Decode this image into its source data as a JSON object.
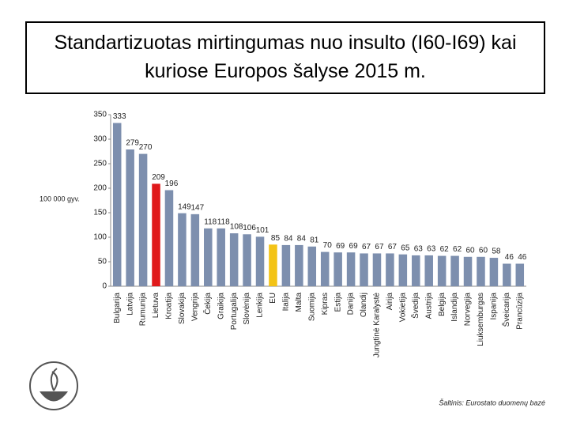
{
  "chart_data": {
    "type": "bar",
    "title": "Standartizuotas mirtingumas nuo insulto (I60-I69) kai kuriose Europos šalyse 2015 m.",
    "y_label": "100 000 gyv.",
    "source": "Šaltinis: Eurostato duomenų bazė",
    "categories": [
      "Bulgarija",
      "Latvija",
      "Rumunija",
      "Lietuva",
      "Kroatija",
      "Slovakija",
      "Vengrija",
      "Čekija",
      "Graikija",
      "Portugalija",
      "Slovėnija",
      "Lenkija",
      "EU",
      "Italija",
      "Malta",
      "Suomija",
      "Kipras",
      "Estija",
      "Danija",
      "Olandij",
      "Jungtinė Karalystė",
      "Airija",
      "Vokietija",
      "Švedija",
      "Austrija",
      "Belgija",
      "Islandija",
      "Norvegija",
      "Liuksemburgas",
      "Ispanija",
      "Šveicarija",
      "Prancūzija"
    ],
    "values": [
      333,
      279,
      270,
      209,
      196,
      149,
      147,
      118,
      118,
      108,
      106,
      101,
      85,
      84,
      84,
      81,
      70,
      69,
      69,
      67,
      67,
      67,
      65,
      63,
      63,
      62,
      62,
      60,
      60,
      58,
      46,
      46
    ],
    "colors": [
      "#7d8fae",
      "#7d8fae",
      "#7d8fae",
      "#e0191b",
      "#7d8fae",
      "#7d8fae",
      "#7d8fae",
      "#7d8fae",
      "#7d8fae",
      "#7d8fae",
      "#7d8fae",
      "#7d8fae",
      "#f3c316",
      "#7d8fae",
      "#7d8fae",
      "#7d8fae",
      "#7d8fae",
      "#7d8fae",
      "#7d8fae",
      "#7d8fae",
      "#7d8fae",
      "#7d8fae",
      "#7d8fae",
      "#7d8fae",
      "#7d8fae",
      "#7d8fae",
      "#7d8fae",
      "#7d8fae",
      "#7d8fae",
      "#7d8fae",
      "#7d8fae",
      "#7d8fae"
    ],
    "ylim": [
      0,
      350
    ],
    "yticks": [
      0,
      50,
      100,
      150,
      200,
      250,
      300,
      350
    ],
    "grid": false
  }
}
